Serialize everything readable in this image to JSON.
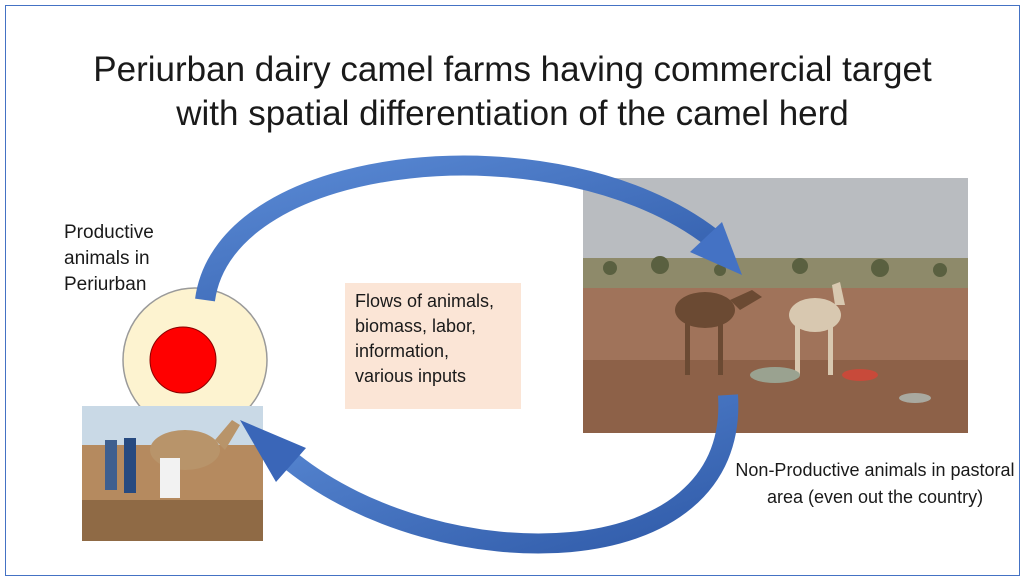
{
  "header": {
    "title": "Periurban dairy camel farms having commercial target with spatial differentiation of the camel herd"
  },
  "labels": {
    "periurban": "Productive animals in Periurban",
    "flows": "Flows of animals, biomass, labor, information, various inputs",
    "pastoral": "Non-Productive animals in pastoral area (even out the country)"
  }
}
